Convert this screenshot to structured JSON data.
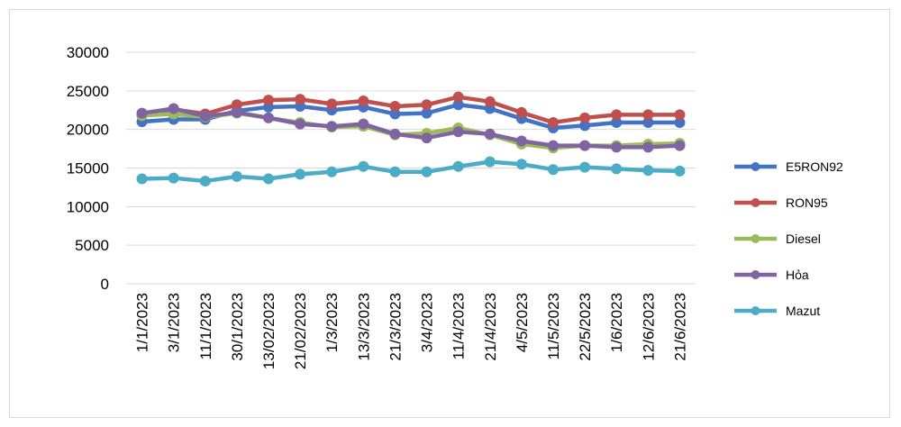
{
  "chart_data": {
    "type": "line",
    "title": "",
    "xlabel": "",
    "ylabel": "",
    "ylim": [
      0,
      30000
    ],
    "yticks": [
      "0",
      "5000",
      "10000",
      "15000",
      "20000",
      "25000",
      "30000"
    ],
    "grid": "horizontal",
    "legend_position": "right",
    "x": [
      "1/1/2023",
      "3/1/2023",
      "11/1/2023",
      "30/1/2023",
      "13/02/2023",
      "21/02/2023",
      "1/3/2023",
      "13/3/2023",
      "21/3/2023",
      "3/4/2023",
      "11/4/2023",
      "21/4/2023",
      "4/5/2023",
      "11/5/2023",
      "22/5/2023",
      "1/6/2023",
      "12/6/2023",
      "21/6/2023"
    ],
    "series": [
      {
        "name": "E5RON92",
        "color": "#4472C4",
        "values": [
          21000,
          21300,
          21300,
          22400,
          22900,
          23000,
          22500,
          22900,
          22000,
          22100,
          23200,
          22700,
          21400,
          20200,
          20500,
          20900,
          20900,
          20900
        ]
      },
      {
        "name": "RON95",
        "color": "#C0504D",
        "values": [
          21800,
          22600,
          22000,
          23200,
          23800,
          23900,
          23300,
          23700,
          23000,
          23200,
          24200,
          23600,
          22200,
          20900,
          21500,
          21900,
          21900,
          21900
        ]
      },
      {
        "name": "Diesel",
        "color": "#9BBB59",
        "values": [
          21800,
          22000,
          21600,
          22100,
          21500,
          20900,
          20300,
          20400,
          19300,
          19500,
          20200,
          19300,
          18100,
          17600,
          17900,
          17900,
          18100,
          18200
        ]
      },
      {
        "name": "Hỏa",
        "color": "#8064A2",
        "values": [
          22100,
          22700,
          21700,
          22200,
          21500,
          20700,
          20400,
          20700,
          19400,
          18900,
          19700,
          19400,
          18500,
          17900,
          17900,
          17700,
          17700,
          17900
        ]
      },
      {
        "name": "Mazut",
        "color": "#4BACC6",
        "values": [
          13600,
          13700,
          13300,
          13900,
          13600,
          14200,
          14500,
          15200,
          14500,
          14500,
          15200,
          15800,
          15500,
          14800,
          15100,
          14900,
          14700,
          14600
        ]
      }
    ]
  }
}
